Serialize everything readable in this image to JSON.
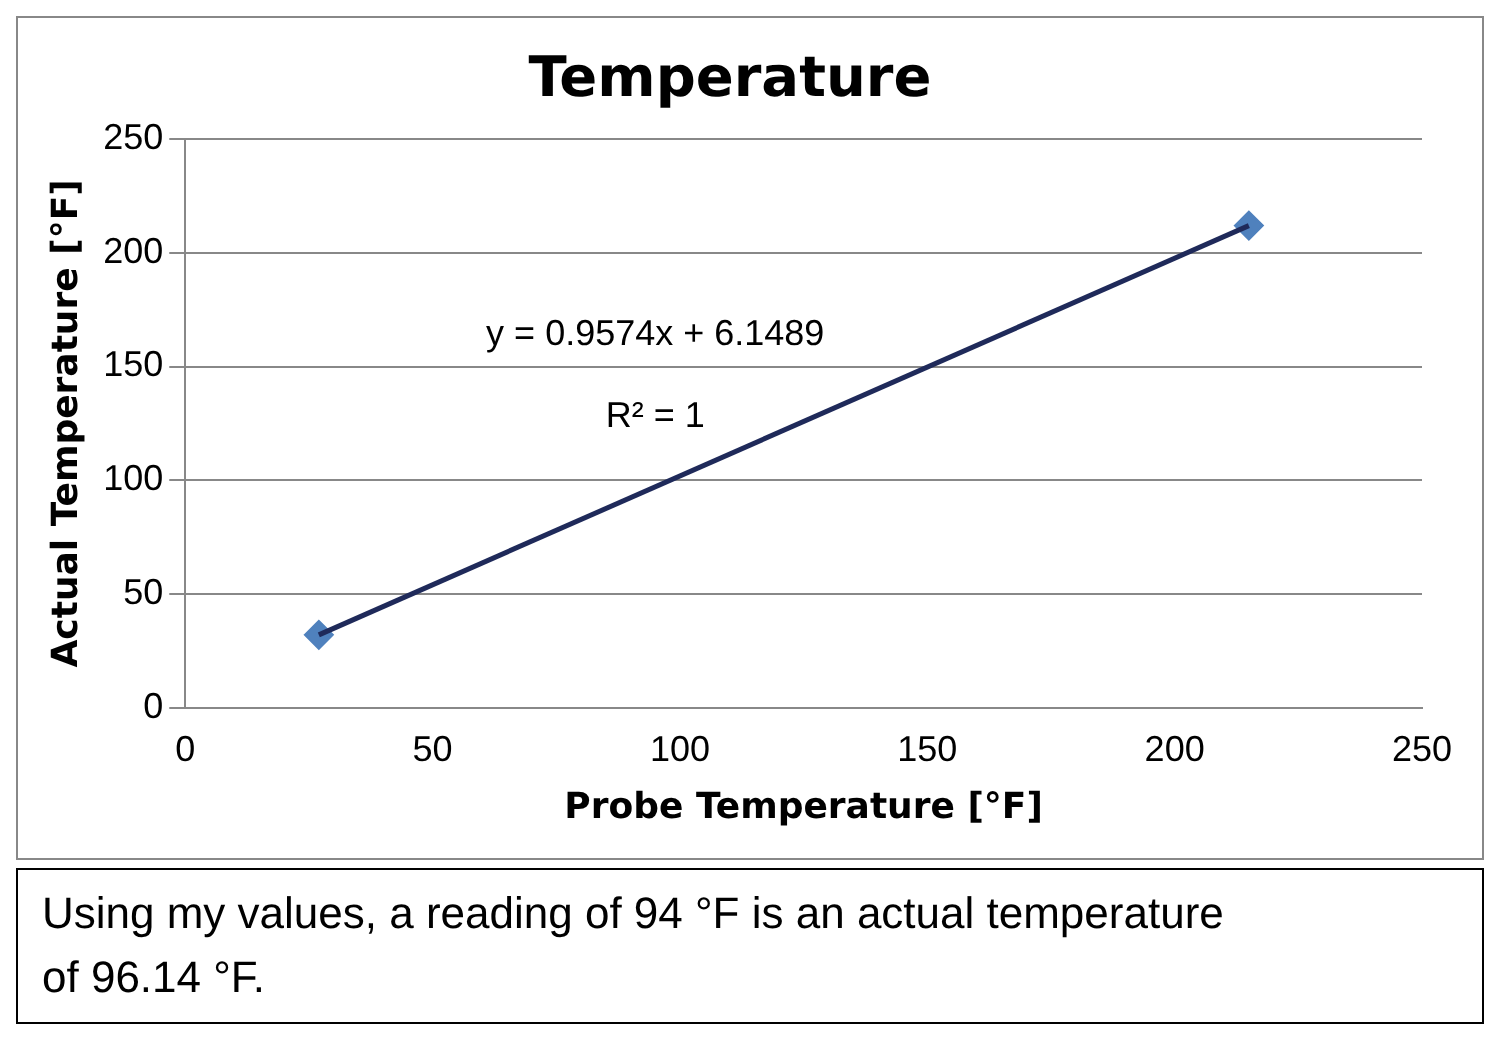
{
  "chart_data": {
    "type": "scatter",
    "title": "Temperature",
    "xlabel": "Probe Temperature [°F]",
    "ylabel": "Actual Temperature [°F]",
    "x": [
      27,
      215
    ],
    "series": [
      {
        "color": "#4f81bd",
        "values": [
          32,
          212
        ],
        "marker": "diamond"
      },
      {
        "type": "line",
        "color": "#1f2a5a",
        "x": [
          27,
          215
        ],
        "values": [
          32,
          212
        ],
        "marker": "none",
        "line_style": "solid"
      }
    ],
    "xlim": [
      0,
      250
    ],
    "xticks": [
      0,
      50,
      100,
      150,
      200,
      250
    ],
    "ylim": [
      0,
      250
    ],
    "yticks": [
      0,
      50,
      100,
      150,
      200,
      250
    ],
    "grid": "y",
    "legend": false,
    "annotations": [
      "y = 0.9574x + 6.1489",
      "R² = 1",
      "Using my values, a reading of 94 °F is an actual temperature of 96.14 °F."
    ]
  }
}
